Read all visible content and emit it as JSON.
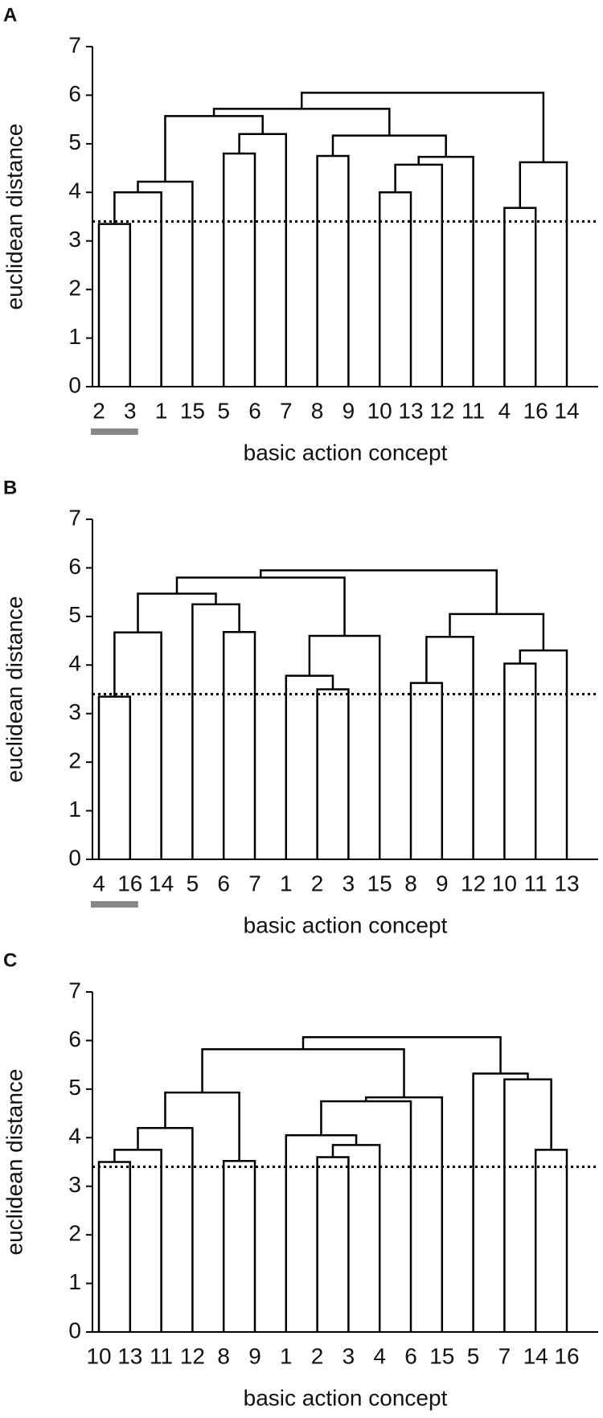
{
  "chart_data": [
    {
      "type": "dendrogram",
      "panel_label": "A",
      "ylabel": "euclidean distance",
      "xlabel": "basic action concept",
      "categories": [
        "2",
        "3",
        "1",
        "15",
        "5",
        "6",
        "7",
        "8",
        "9",
        "10",
        "13",
        "12",
        "11",
        "4",
        "16",
        "14"
      ],
      "highlighted": [
        "2",
        "3"
      ],
      "links": [
        {
          "left": 0,
          "right": 1,
          "height": 3.35
        },
        {
          "left": 16,
          "right": 2,
          "height": 4.0
        },
        {
          "left": 17,
          "right": 3,
          "height": 4.22
        },
        {
          "left": 4,
          "right": 5,
          "height": 4.8
        },
        {
          "left": 19,
          "right": 6,
          "height": 5.2
        },
        {
          "left": 18,
          "right": 20,
          "height": 5.57
        },
        {
          "left": 7,
          "right": 8,
          "height": 4.75
        },
        {
          "left": 9,
          "right": 10,
          "height": 4.0
        },
        {
          "left": 23,
          "right": 11,
          "height": 4.57
        },
        {
          "left": 24,
          "right": 12,
          "height": 4.73
        },
        {
          "left": 22,
          "right": 25,
          "height": 5.17
        },
        {
          "left": 21,
          "right": 26,
          "height": 5.72
        },
        {
          "left": 13,
          "right": 14,
          "height": 3.68
        },
        {
          "left": 28,
          "right": 15,
          "height": 4.62
        },
        {
          "left": 27,
          "right": 29,
          "height": 6.05
        }
      ],
      "threshold": 3.4,
      "ylim": [
        0,
        7
      ],
      "yticks": [
        0,
        1,
        2,
        3,
        4,
        5,
        6,
        7
      ]
    },
    {
      "type": "dendrogram",
      "panel_label": "B",
      "ylabel": "euclidean distance",
      "xlabel": "basic action concept",
      "categories": [
        "4",
        "16",
        "14",
        "5",
        "6",
        "7",
        "1",
        "2",
        "3",
        "15",
        "8",
        "9",
        "12",
        "10",
        "11",
        "13"
      ],
      "highlighted": [
        "4",
        "16"
      ],
      "links": [
        {
          "left": 0,
          "right": 1,
          "height": 3.35
        },
        {
          "left": 16,
          "right": 2,
          "height": 4.67
        },
        {
          "left": 4,
          "right": 5,
          "height": 4.68
        },
        {
          "left": 3,
          "right": 18,
          "height": 5.25
        },
        {
          "left": 17,
          "right": 19,
          "height": 5.47
        },
        {
          "left": 7,
          "right": 8,
          "height": 3.5
        },
        {
          "left": 6,
          "right": 21,
          "height": 3.78
        },
        {
          "left": 22,
          "right": 9,
          "height": 4.6
        },
        {
          "left": 20,
          "right": 23,
          "height": 5.8
        },
        {
          "left": 10,
          "right": 11,
          "height": 3.63
        },
        {
          "left": 25,
          "right": 12,
          "height": 4.58
        },
        {
          "left": 13,
          "right": 14,
          "height": 4.03
        },
        {
          "left": 27,
          "right": 15,
          "height": 4.3
        },
        {
          "left": 26,
          "right": 28,
          "height": 5.05
        },
        {
          "left": 24,
          "right": 29,
          "height": 5.95
        }
      ],
      "threshold": 3.4,
      "ylim": [
        0,
        7
      ],
      "yticks": [
        0,
        1,
        2,
        3,
        4,
        5,
        6,
        7
      ]
    },
    {
      "type": "dendrogram",
      "panel_label": "C",
      "ylabel": "euclidean distance",
      "xlabel": "basic action concept",
      "categories": [
        "10",
        "13",
        "11",
        "12",
        "8",
        "9",
        "1",
        "2",
        "3",
        "4",
        "6",
        "15",
        "5",
        "7",
        "14",
        "16"
      ],
      "highlighted": [],
      "links": [
        {
          "left": 0,
          "right": 1,
          "height": 3.5
        },
        {
          "left": 16,
          "right": 2,
          "height": 3.75
        },
        {
          "left": 17,
          "right": 3,
          "height": 4.2
        },
        {
          "left": 4,
          "right": 5,
          "height": 3.52
        },
        {
          "left": 18,
          "right": 19,
          "height": 4.93
        },
        {
          "left": 7,
          "right": 8,
          "height": 3.6
        },
        {
          "left": 21,
          "right": 9,
          "height": 3.85
        },
        {
          "left": 6,
          "right": 22,
          "height": 4.05
        },
        {
          "left": 23,
          "right": 10,
          "height": 4.75
        },
        {
          "left": 24,
          "right": 11,
          "height": 4.83
        },
        {
          "left": 20,
          "right": 25,
          "height": 5.82
        },
        {
          "left": 14,
          "right": 15,
          "height": 3.75
        },
        {
          "left": 13,
          "right": 27,
          "height": 5.2
        },
        {
          "left": 12,
          "right": 28,
          "height": 5.32
        },
        {
          "left": 26,
          "right": 29,
          "height": 6.07
        }
      ],
      "threshold": 3.4,
      "ylim": [
        0,
        7
      ],
      "yticks": [
        0,
        1,
        2,
        3,
        4,
        5,
        6,
        7
      ]
    }
  ]
}
